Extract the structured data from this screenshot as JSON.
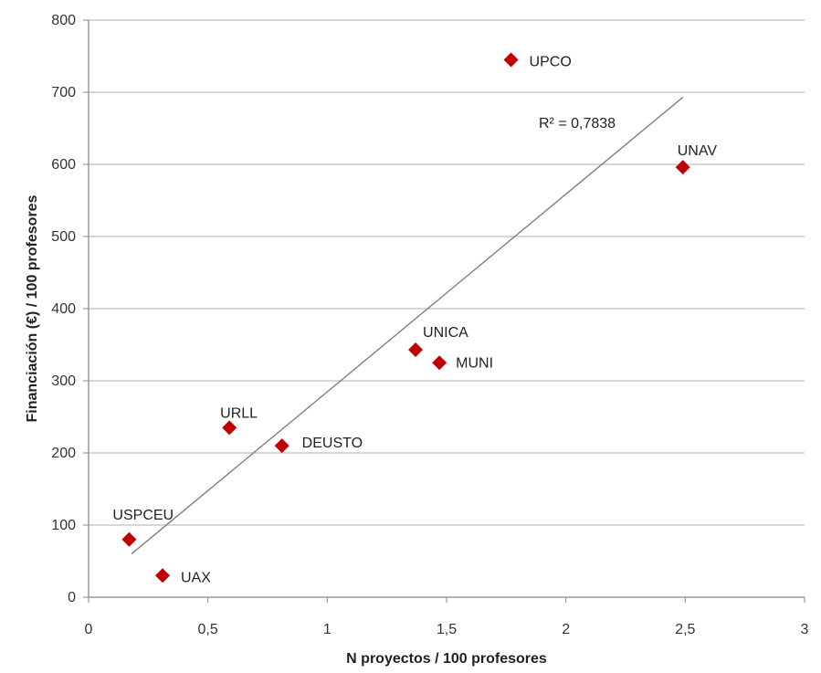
{
  "chart_data": {
    "type": "scatter",
    "xlabel": "N proyectos / 100 profesores",
    "ylabel": "Financiación (€) / 100 profesores",
    "xlim": [
      0,
      3
    ],
    "ylim": [
      0,
      800
    ],
    "x_ticks": [
      "0",
      "0,5",
      "1",
      "1,5",
      "2",
      "2,5",
      "3"
    ],
    "y_ticks": [
      "0",
      "100",
      "200",
      "300",
      "400",
      "500",
      "600",
      "700",
      "800"
    ],
    "grid": "horizontal",
    "marker": "diamond",
    "marker_color": "#c00000",
    "trendline_color": "#808080",
    "points": [
      {
        "label": "USPCEU",
        "x": 0.17,
        "y": 80
      },
      {
        "label": "UAX",
        "x": 0.31,
        "y": 30
      },
      {
        "label": "URLL",
        "x": 0.59,
        "y": 235
      },
      {
        "label": "DEUSTO",
        "x": 0.81,
        "y": 210
      },
      {
        "label": "UNICA",
        "x": 1.37,
        "y": 343
      },
      {
        "label": "MUNI",
        "x": 1.47,
        "y": 325
      },
      {
        "label": "UPCO",
        "x": 1.77,
        "y": 745
      },
      {
        "label": "UNAV",
        "x": 2.49,
        "y": 596
      }
    ],
    "trendline": {
      "x": [
        0.18,
        2.49
      ],
      "y": [
        60,
        693
      ]
    },
    "r2_label": "R² = 0,7838"
  }
}
